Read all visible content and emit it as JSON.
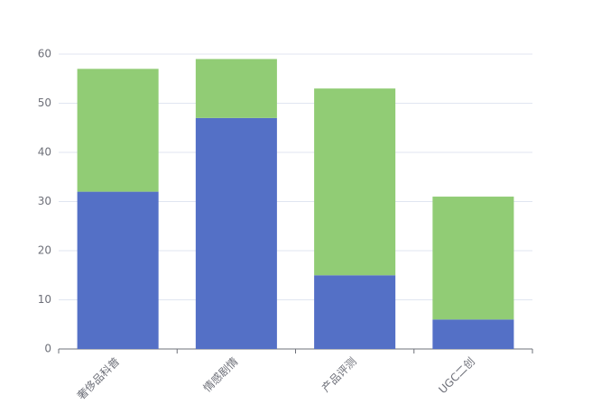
{
  "chart_data": {
    "type": "stacked_bar",
    "categories": [
      "奢侈品科普",
      "情感剧情",
      "产品评测",
      "UGC二创"
    ],
    "series": [
      {
        "color": "#5470c6",
        "values": [
          32,
          47,
          15,
          6
        ]
      },
      {
        "color": "#91cc75",
        "values": [
          25,
          12,
          38,
          25
        ]
      }
    ],
    "ylim": [
      0,
      60
    ],
    "yticks": [
      0,
      10,
      20,
      30,
      40,
      50,
      60
    ],
    "grid": true
  }
}
